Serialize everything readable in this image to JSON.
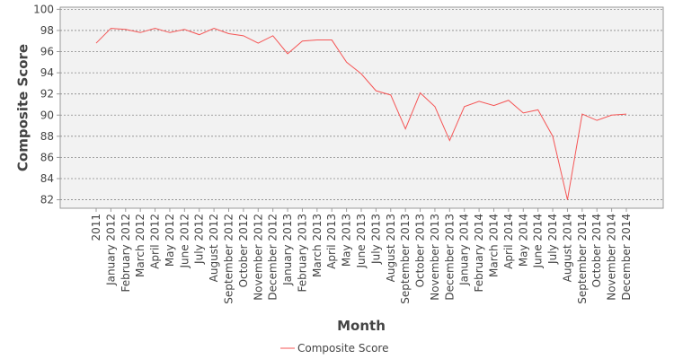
{
  "chart_data": {
    "type": "line",
    "x_label": "Month",
    "y_label": "Composite Score",
    "categories": [
      "2011",
      "January 2012",
      "February 2012",
      "March 2012",
      "April 2012",
      "May 2012",
      "June 2012",
      "July 2012",
      "August 2012",
      "September 2012",
      "October 2012",
      "November 2012",
      "December 2012",
      "January 2013",
      "February 2013",
      "March 2013",
      "April 2013",
      "May 2013",
      "June 2013",
      "July 2013",
      "August 2013",
      "September 2013",
      "October 2013",
      "November 2013",
      "December 2013",
      "January 2014",
      "February 2014",
      "March 2014",
      "April 2014",
      "May 2014",
      "June 2014",
      "July 2014",
      "August 2014",
      "September 2014",
      "October 2014",
      "November 2014",
      "December 2014"
    ],
    "series": [
      {
        "name": "Composite Score",
        "color": "#f55555",
        "values": [
          96.8,
          98.2,
          98.1,
          97.8,
          98.2,
          97.8,
          98.1,
          97.6,
          98.2,
          97.7,
          97.5,
          96.8,
          97.5,
          95.8,
          97.0,
          97.1,
          97.1,
          95.0,
          93.9,
          92.3,
          91.9,
          88.7,
          92.1,
          90.8,
          87.6,
          90.8,
          91.3,
          90.9,
          91.4,
          90.2,
          90.5,
          88.0,
          82.0,
          90.1,
          89.5,
          90.0,
          90.1
        ]
      }
    ],
    "ylim": [
      81.2,
      100.2
    ],
    "yticks": [
      82,
      84,
      86,
      88,
      90,
      92,
      94,
      96,
      98,
      100
    ],
    "grid": true,
    "legend": "bottom"
  }
}
